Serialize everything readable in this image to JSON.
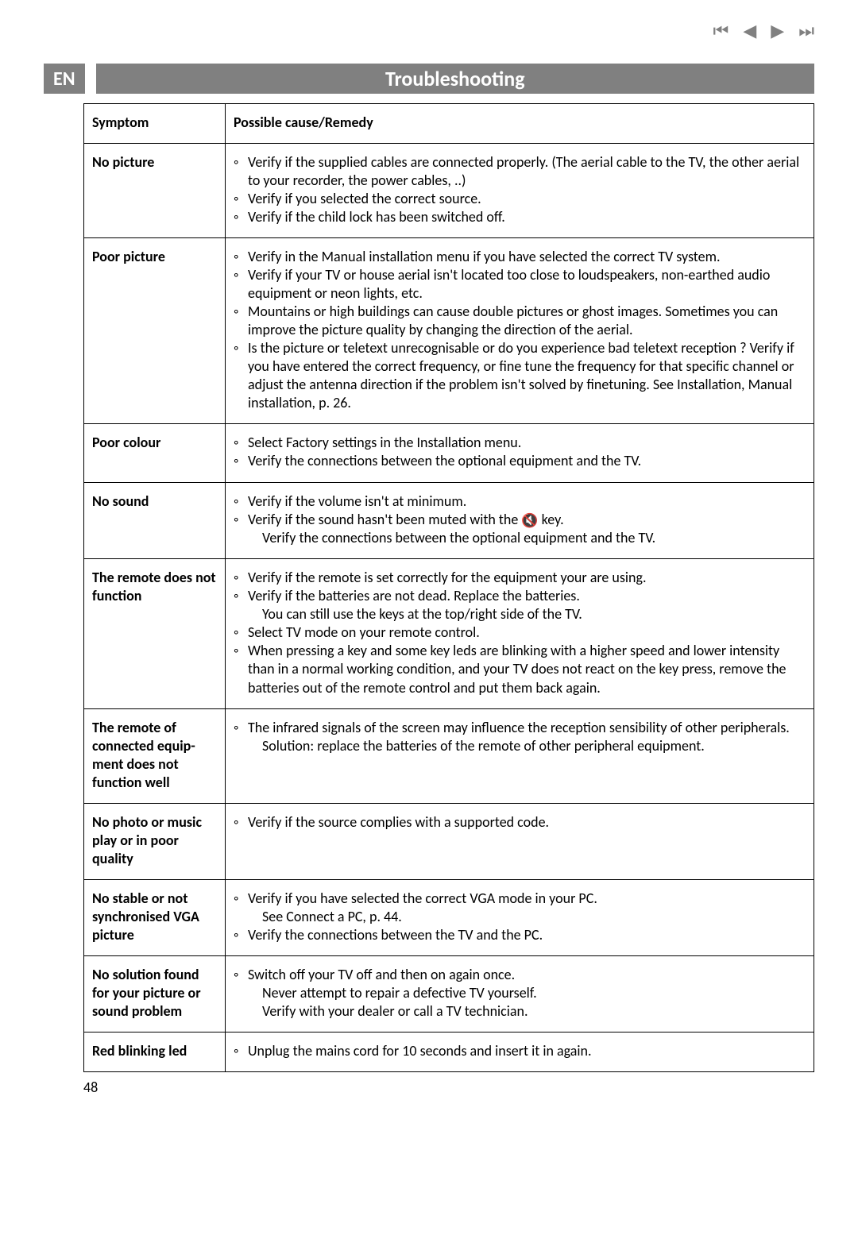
{
  "nav": {
    "first_icon": "⏮",
    "prev_icon": "◀",
    "next_icon": "▶",
    "last_icon": "⏭"
  },
  "header": {
    "lang": "EN",
    "title": "Troubleshooting"
  },
  "table": {
    "col_symptom": "Symptom",
    "col_remedy": "Possible cause/Remedy"
  },
  "rows": {
    "no_picture": {
      "symptom": "No picture",
      "r1": "Verify if the supplied cables are connected properly. (The aerial cable to the TV, the other aerial to your recorder, the power cables, ..)",
      "r2": "Verify if you selected the correct source.",
      "r3": "Verify if the child lock has been switched off."
    },
    "poor_picture": {
      "symptom": "Poor picture",
      "r1": "Verify in the Manual installation menu if you have selected the correct TV system.",
      "r2": "Verify if your TV or house aerial isn't located too close to loudspeakers, non-earthed audio equipment or neon lights, etc.",
      "r3": "Mountains or high buildings can cause double pictures or ghost images. Sometimes you can improve the picture quality by changing the direction of the aerial.",
      "r4": "Is the picture or teletext unrecognisable or do you experience bad teletext reception ? Verify if you have entered the correct frequency, or fine tune the frequency for that specific channel or adjust the antenna direction if the problem isn't solved by finetuning. See Installation, Manual installation, p. 26."
    },
    "poor_colour": {
      "symptom": "Poor colour",
      "r1": "Select Factory settings in the Installation menu.",
      "r2": "Verify the connections between the optional equipment and the TV."
    },
    "no_sound": {
      "symptom": "No sound",
      "r1": "Verify if the volume isn't at minimum.",
      "r2a": "Verify if the sound hasn't been muted with the ",
      "r2b": " key.",
      "r2c": "Verify the connections between the optional equipment and the TV.",
      "mute_icon": "🔇"
    },
    "remote_nf": {
      "symptom": "The remote does not function",
      "r1": "Verify if the remote is set correctly for the equipment your are using.",
      "r2": "Verify if the batteries are not dead. Replace the batteries.",
      "r2b": "You can still use the keys at the top/right side of the TV.",
      "r3": "Select TV mode on your remote control.",
      "r4": "When pressing a key and some key leds are blinking with a higher speed and lower intensity than in a normal working condition, and your TV does not react on the key press, remove the batteries out of the remote control and put them back again."
    },
    "remote_equip": {
      "symptom": "The remote of connected equip-ment does not function well",
      "r1": "The infrared signals of the screen may influence the reception sensibility of other peripherals.",
      "r1b": "Solution: replace the batteries of the remote of other peripheral equipment."
    },
    "no_photo": {
      "symptom": "No photo or music play or in poor quality",
      "r1": "Verify if the source complies with a supported code."
    },
    "vga": {
      "symptom": "No stable or not synchronised VGA picture",
      "r1": "Verify if you have selected the correct VGA mode in your PC.",
      "r1b": "See Connect a PC, p. 44.",
      "r2": "Verify the connections between the TV and the PC."
    },
    "no_solution": {
      "symptom": "No solution found for your picture or sound problem",
      "r1": "Switch off your TV off and then on again once.",
      "r1b": "Never attempt to repair a defective TV yourself.",
      "r1c": "Verify with your dealer or call a TV technician."
    },
    "red_led": {
      "symptom": "Red blinking led",
      "r1": "Unplug the mains cord for 10 seconds and insert it in again."
    }
  },
  "page_number": "48"
}
